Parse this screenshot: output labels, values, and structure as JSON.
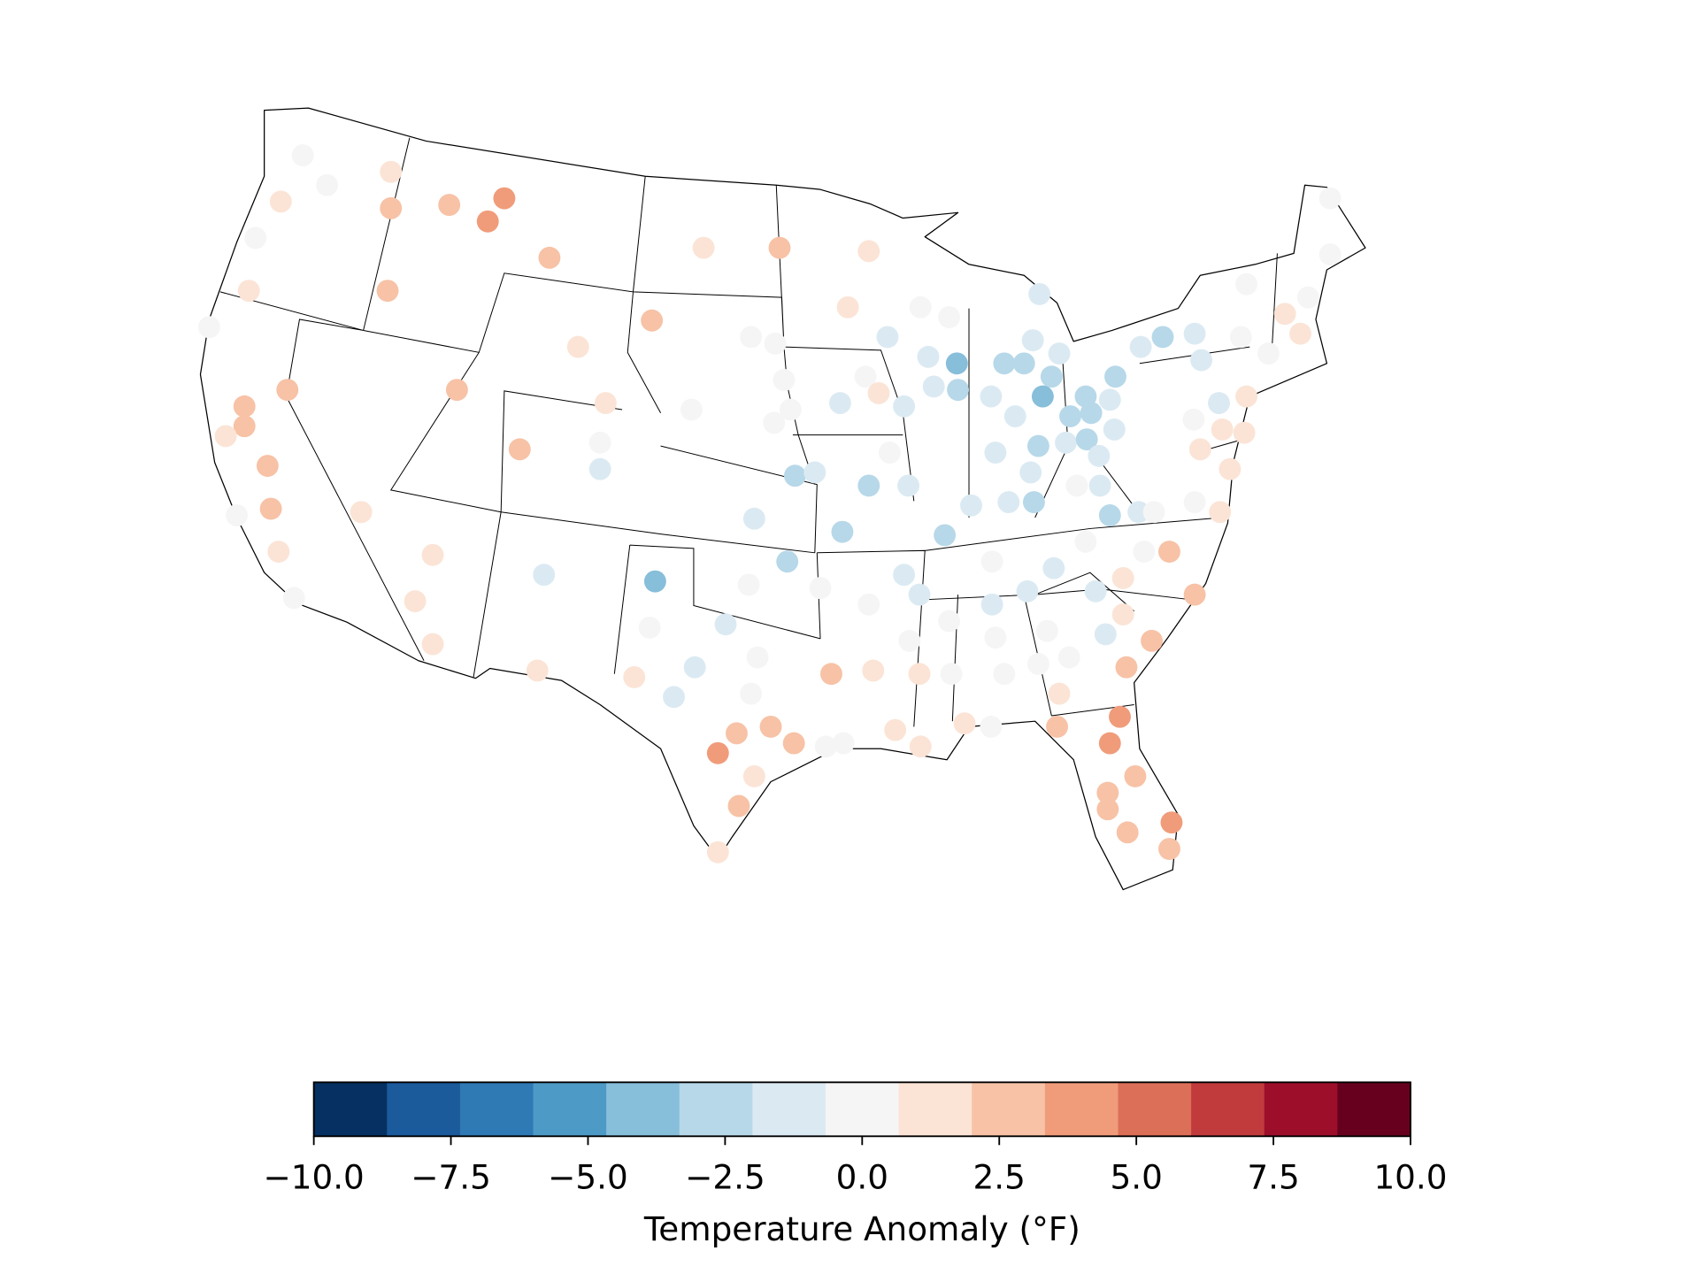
{
  "chart_data": {
    "type": "scatter",
    "colorbar_label": "Temperature Anomaly (°F)",
    "clim": [
      -10,
      10
    ],
    "cticks": [
      {
        "value": -10,
        "label": "−10.0"
      },
      {
        "value": -7.5,
        "label": "−7.5"
      },
      {
        "value": -5,
        "label": "−5.0"
      },
      {
        "value": -2.5,
        "label": "−2.5"
      },
      {
        "value": 0,
        "label": "0.0"
      },
      {
        "value": 2.5,
        "label": "2.5"
      },
      {
        "value": 5,
        "label": "5.0"
      },
      {
        "value": 7.5,
        "label": "7.5"
      },
      {
        "value": 10,
        "label": "10.0"
      }
    ],
    "colormap": [
      "#053061",
      "#1b5a9b",
      "#2f79b5",
      "#4e9ac6",
      "#87beda",
      "#b7d8e9",
      "#dbeaf2",
      "#f5f5f5",
      "#fbe4d6",
      "#f7c2a6",
      "#f09c7b",
      "#dc6f58",
      "#c13b3d",
      "#9d0e2a",
      "#67001f"
    ],
    "lon": [
      -120.25,
      -119.15,
      -116.25,
      -121.25,
      -116.25,
      -122.4,
      -122.7,
      -116.4,
      -124.5,
      -120.95,
      -122.9,
      -122.9,
      -123.75,
      -121.85,
      -121.7,
      -123.25,
      -121.35,
      -120.65,
      -117.6,
      -113.6,
      -111.1,
      -111.85,
      -109.05,
      -104.4,
      -107.75,
      -113.25,
      -106.5,
      -110.4,
      -106.75,
      -106.75,
      -114.35,
      -115.15,
      -114.35,
      -109.3,
      -109.6,
      -102.05,
      -98.6,
      -94.55,
      -95.5,
      -99.9,
      -98.8,
      -98.4,
      -102.6,
      -98.1,
      -98.85,
      -95.85,
      -94.7,
      -94.1,
      -97.9,
      -97.0,
      -99.75,
      -95.75,
      -94.55,
      -93.6,
      -92.75,
      -98.25,
      -104.25,
      -100.0,
      -96.75,
      -104.5,
      -101.05,
      -99.6,
      -102.45,
      -105.2,
      -103.4,
      -99.9,
      -100.55,
      -99.0,
      -97.95,
      -101.4,
      -99.75,
      -100.45,
      -101.4,
      -96.5,
      -95.7,
      -94.55,
      -92.95,
      -92.25,
      -92.7,
      -96.25,
      -94.35,
      -92.25,
      -90.9,
      -90.8,
      -93.35,
      -92.2,
      -90.2,
      -89.0,
      -93.7,
      -92.2,
      -90.9,
      -91.85,
      -90.55,
      -91.6,
      -90.5,
      -92.95,
      -91.1,
      -89.9,
      -86.8,
      -87.1,
      -85.9,
      -88.4,
      -87.5,
      -86.25,
      -86.65,
      -89.0,
      -87.9,
      -86.85,
      -88.8,
      -85.6,
      -84.7,
      -85.4,
      -84.45,
      -83.6,
      -83.35,
      -84.65,
      -84.1,
      -83.4,
      -87.2,
      -88.2,
      -87.05,
      -85.1,
      -84.05,
      -83.6,
      -82.3,
      -81.6,
      -82.2,
      -81.2,
      -79.75,
      -79.45,
      -77.65,
      -77.4,
      -76.4,
      -75.65,
      -74.95,
      -74.6,
      -73.6,
      -73.6,
      -78.65,
      -77.4,
      -79.8,
      -78.5,
      -77.5,
      -79.5,
      -78.15,
      -79.75,
      -78.6,
      -84.7,
      -86.15,
      -87.35,
      -88.95,
      -88.95,
      -84.25,
      -83.0,
      -82.05,
      -80.9,
      -79.75,
      -83.0,
      -83.8,
      -81.7,
      -86.45,
      -85.45,
      -88.8,
      -88.4,
      -86.85,
      -82.85,
      -85.9,
      -86.0,
      -83.15,
      -83.6,
      -82.45,
      -83.7,
      -83.7,
      -82.8,
      -80.8,
      -80.9
    ],
    "lat": [
      47.6,
      46.7,
      47.1,
      46.2,
      46.0,
      45.1,
      43.5,
      43.5,
      42.4,
      40.5,
      40.0,
      39.4,
      39.1,
      38.2,
      36.9,
      36.7,
      35.6,
      34.2,
      36.8,
      46.1,
      46.3,
      45.6,
      44.5,
      42.6,
      41.8,
      40.5,
      40.1,
      38.7,
      38.9,
      38.1,
      35.5,
      34.1,
      32.8,
      34.9,
      32.0,
      44.8,
      44.8,
      44.7,
      43.0,
      42.1,
      41.9,
      40.8,
      39.9,
      39.9,
      39.5,
      40.1,
      40.9,
      40.4,
      37.9,
      38.0,
      36.6,
      36.2,
      37.6,
      38.6,
      37.6,
      35.3,
      34.7,
      34.6,
      34.5,
      33.3,
      33.4,
      32.4,
      32.1,
      31.8,
      31.2,
      31.3,
      30.1,
      30.3,
      29.8,
      29.5,
      28.8,
      27.9,
      26.5,
      29.7,
      29.8,
      34.0,
      34.9,
      34.3,
      32.9,
      31.9,
      32.0,
      31.9,
      33.5,
      31.9,
      30.2,
      29.7,
      30.4,
      30.3,
      42.1,
      43.0,
      42.7,
      41.5,
      41.3,
      40.6,
      40.5,
      40.0,
      36.1,
      37.0,
      43.4,
      42.0,
      41.6,
      41.3,
      41.3,
      40.9,
      40.3,
      40.3,
      39.7,
      38.8,
      38.6,
      38.9,
      40.3,
      39.7,
      39.8,
      40.2,
      40.9,
      39.0,
      38.5,
      39.3,
      38.0,
      37.1,
      37.1,
      37.6,
      37.6,
      36.7,
      36.8,
      36.8,
      41.8,
      42.1,
      42.2,
      41.4,
      42.1,
      43.7,
      41.6,
      42.8,
      42.2,
      43.3,
      44.6,
      46.3,
      40.1,
      40.3,
      39.6,
      39.3,
      39.2,
      38.7,
      38.1,
      37.1,
      36.8,
      35.9,
      35.1,
      34.4,
      35.3,
      34.0,
      34.4,
      34.8,
      35.6,
      35.6,
      34.3,
      33.7,
      33.1,
      32.9,
      33.2,
      32.4,
      33.0,
      31.9,
      32.2,
      32.1,
      31.3,
      30.3,
      30.6,
      29.8,
      28.8,
      28.3,
      27.8,
      27.1,
      27.4,
      26.6
    ],
    "values": [
      0,
      0,
      1.3,
      1.3,
      2.7,
      0,
      1.3,
      2.7,
      0,
      2.7,
      2.7,
      2.7,
      1.3,
      2.7,
      2.7,
      0,
      1.3,
      0,
      1.3,
      2.7,
      4.0,
      4.0,
      2.7,
      2.7,
      1.3,
      2.7,
      1.3,
      2.7,
      0,
      -1.3,
      1.3,
      1.3,
      1.3,
      -1.3,
      1.3,
      1.3,
      2.7,
      1.3,
      1.3,
      0,
      0,
      0,
      0,
      0,
      0,
      -1.3,
      0,
      1.3,
      -2.7,
      -1.3,
      -1.3,
      -2.7,
      -2.7,
      0,
      -1.3,
      -2.7,
      -4.0,
      0,
      0,
      0,
      -1.3,
      0,
      -1.3,
      1.3,
      -1.3,
      0,
      2.7,
      2.7,
      2.7,
      4.0,
      1.3,
      2.7,
      1.3,
      0,
      0,
      0,
      -1.3,
      -1.3,
      0,
      2.7,
      1.3,
      1.3,
      0,
      0,
      1.3,
      1.3,
      1.3,
      0,
      -1.3,
      0,
      0,
      -1.3,
      -4.0,
      -1.3,
      -2.7,
      -1.3,
      -2.7,
      -1.3,
      -1.3,
      -1.3,
      -1.3,
      -2.7,
      -2.7,
      -2.7,
      -4.0,
      -1.3,
      -1.3,
      -2.7,
      -1.3,
      -1.3,
      -2.7,
      -2.7,
      -2.7,
      -1.3,
      -2.7,
      -2.7,
      -1.3,
      -1.3,
      -1.3,
      -1.3,
      -2.7,
      0,
      -1.3,
      -2.7,
      -1.3,
      0,
      -1.3,
      -2.7,
      -1.3,
      -1.3,
      0,
      0,
      0,
      1.3,
      1.3,
      0,
      0,
      0,
      -1.3,
      1.3,
      0,
      1.3,
      1.3,
      1.3,
      1.3,
      0,
      1.3,
      0,
      -1.3,
      -1.3,
      0,
      -1.3,
      -1.3,
      1.3,
      0,
      2.7,
      2.7,
      1.3,
      -1.3,
      2.7,
      0,
      0,
      0,
      0,
      0,
      2.7,
      1.3,
      2.7,
      4.0,
      4.0,
      2.7,
      2.7,
      2.7,
      2.7,
      4.0,
      2.7
    ]
  }
}
